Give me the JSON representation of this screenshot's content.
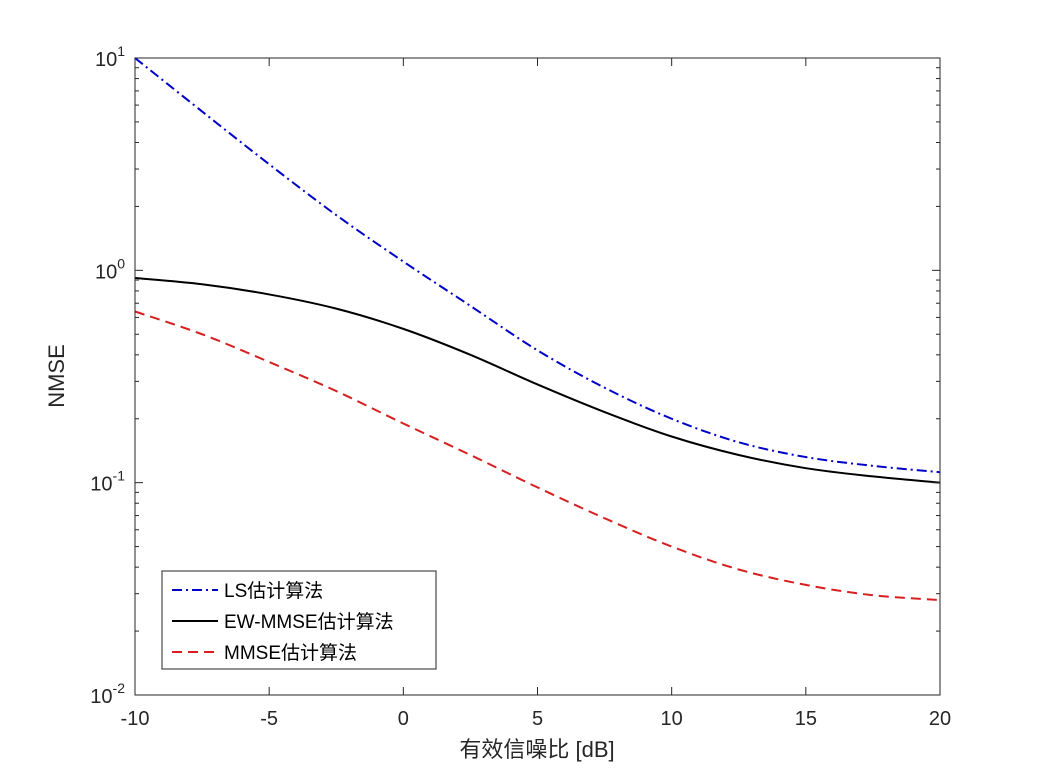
{
  "chart_data": {
    "type": "line",
    "xlabel": "有效信噪比 [dB]",
    "ylabel": "NMSE",
    "xlim": [
      -10,
      20
    ],
    "ylim": [
      0.01,
      10
    ],
    "yscale": "log",
    "grid": false,
    "legend_placement": "bottom-left",
    "x_ticks": [
      -10,
      -5,
      0,
      5,
      10,
      15,
      20
    ],
    "x_tick_labels": [
      "-10",
      "-5",
      "0",
      "5",
      "10",
      "15",
      "20"
    ],
    "y_ticks": [
      0.01,
      0.1,
      1,
      10
    ],
    "y_tick_labels": [
      {
        "base": "10",
        "exp": "-2"
      },
      {
        "base": "10",
        "exp": "-1"
      },
      {
        "base": "10",
        "exp": "0"
      },
      {
        "base": "10",
        "exp": "1"
      }
    ],
    "x": [
      -10,
      -7.5,
      -5,
      -2.5,
      0,
      2.5,
      5,
      7.5,
      10,
      12.5,
      15,
      17.5,
      20
    ],
    "series": [
      {
        "name": "LS估计算法",
        "color": "#0000c8",
        "dash": "dashdot",
        "values": [
          10.0,
          5.6,
          3.16,
          1.82,
          1.1,
          0.68,
          0.42,
          0.28,
          0.2,
          0.155,
          0.132,
          0.12,
          0.112
        ]
      },
      {
        "name": "EW-MMSE估计算法",
        "color": "#000000",
        "dash": "solid",
        "values": [
          0.92,
          0.86,
          0.77,
          0.66,
          0.53,
          0.4,
          0.29,
          0.215,
          0.165,
          0.135,
          0.117,
          0.107,
          0.1
        ]
      },
      {
        "name": "MMSE估计算法",
        "color": "#d62020",
        "dash": "dashed",
        "values": [
          0.64,
          0.5,
          0.37,
          0.27,
          0.19,
          0.135,
          0.095,
          0.068,
          0.05,
          0.039,
          0.033,
          0.0295,
          0.028
        ]
      }
    ]
  }
}
